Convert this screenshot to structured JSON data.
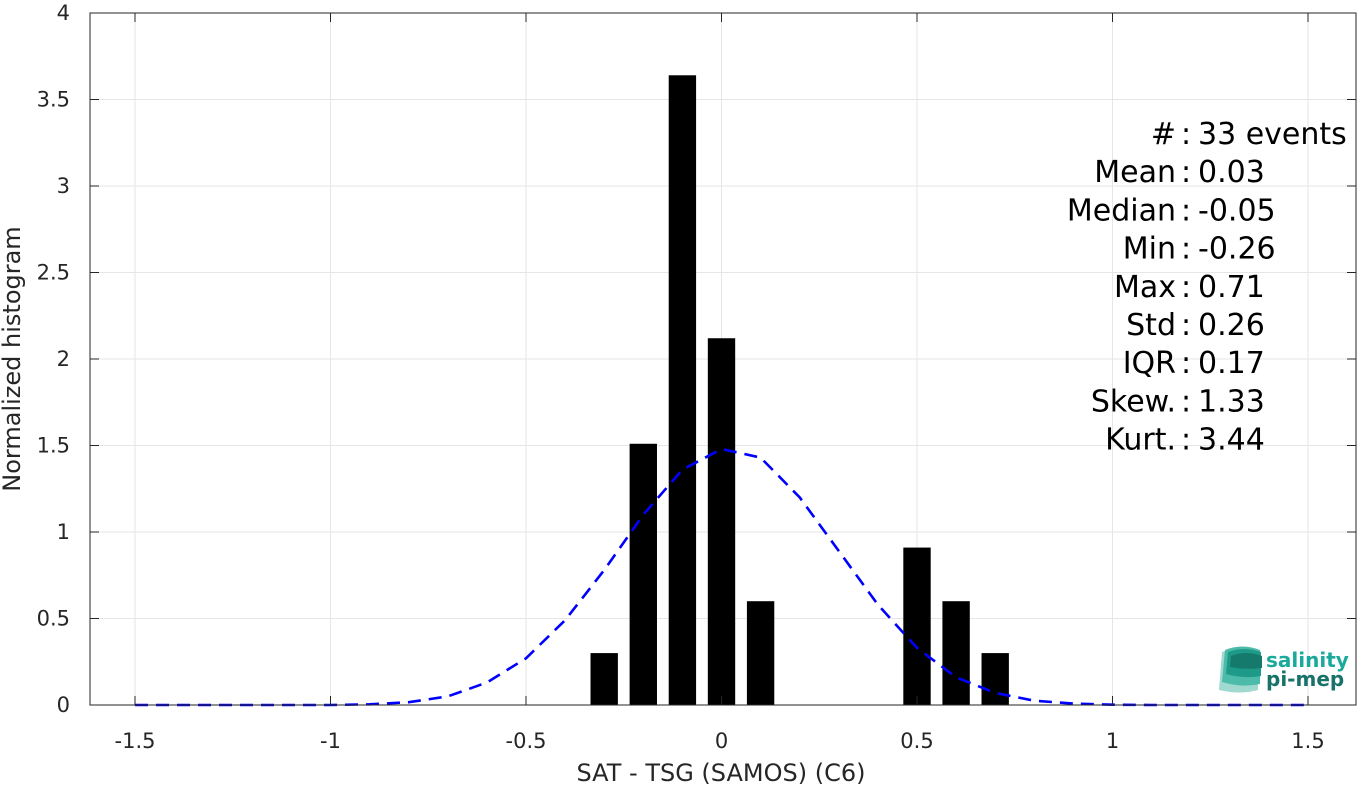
{
  "chart_data": {
    "type": "bar",
    "xlabel": "SAT - TSG (SAMOS) (C6)",
    "ylabel": "Normalized histogram",
    "xlim": [
      -1.5,
      1.5
    ],
    "ylim": [
      0,
      4
    ],
    "grid": true,
    "x_ticks": [
      "-1.5",
      "-1",
      "-0.5",
      "0",
      "0.5",
      "1",
      "1.5"
    ],
    "y_ticks": [
      "0",
      "0.5",
      "1",
      "1.5",
      "2",
      "2.5",
      "3",
      "3.5",
      "4"
    ],
    "bar_width": 0.07,
    "bars": {
      "centers": [
        -0.3,
        -0.2,
        -0.1,
        0.0,
        0.1,
        0.5,
        0.6,
        0.7
      ],
      "values": [
        0.3,
        1.51,
        3.64,
        2.12,
        0.6,
        0.91,
        0.6,
        0.3
      ],
      "color": "#000000"
    },
    "fit_curve": {
      "style": "dashed",
      "color": "#0000ff",
      "x": [
        -1.5,
        -1.4,
        -1.3,
        -1.2,
        -1.1,
        -1.0,
        -0.9,
        -0.8,
        -0.7,
        -0.6,
        -0.5,
        -0.4,
        -0.3,
        -0.2,
        -0.1,
        0.0,
        0.1,
        0.2,
        0.3,
        0.4,
        0.5,
        0.6,
        0.7,
        0.8,
        0.9,
        1.0,
        1.1,
        1.2,
        1.3,
        1.4,
        1.5
      ],
      "y": [
        0.0,
        0.0,
        0.0,
        0.0,
        0.0,
        0.0,
        0.004,
        0.016,
        0.05,
        0.13,
        0.27,
        0.49,
        0.78,
        1.1,
        1.36,
        1.48,
        1.43,
        1.2,
        0.89,
        0.58,
        0.33,
        0.16,
        0.07,
        0.025,
        0.008,
        0.002,
        0.0,
        0.0,
        0.0,
        0.0,
        0.0
      ]
    },
    "stats": [
      "#  : 33 events",
      "Mean : 0.03",
      "Median : -0.05",
      "Min : -0.26",
      "Max : 0.71",
      "Std : 0.26",
      "IQR : 0.17",
      "Skew. : 1.33",
      "Kurt. : 3.44"
    ]
  },
  "logo": {
    "line1": "salinity",
    "line2": "pi-mep",
    "color1": "#1aa99a",
    "color2": "#17736a"
  }
}
